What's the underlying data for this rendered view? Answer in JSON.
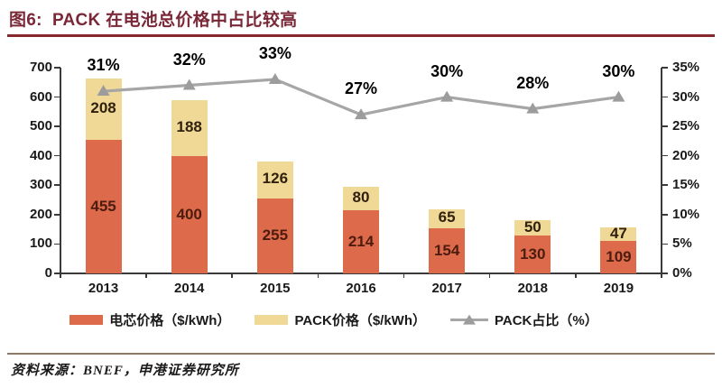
{
  "figure": {
    "title": "图6:  PACK 在电池总价格中占比较高",
    "source": "资料来源：BNEF，申港证券研究所"
  },
  "colors": {
    "title_text": "#7A2837",
    "title_rule": "#86282C",
    "cell_bar": "#DD6A4A",
    "pack_bar": "#F0D996",
    "line": "#A6A6A6",
    "marker": "#9C9C9C",
    "axis": "#3A3A3A",
    "cell_label": "#4C1C0F",
    "pack_label": "#30200E",
    "source_rule": "#8C7A64"
  },
  "chart_data": {
    "type": "bar",
    "stacked": true,
    "grid": false,
    "legend_position": "bottom",
    "title": "",
    "xlabel": "",
    "ylabel": "",
    "categories": [
      "2013",
      "2014",
      "2015",
      "2016",
      "2017",
      "2018",
      "2019"
    ],
    "series": [
      {
        "name": "电芯价格（$/kWh）",
        "axis": "left",
        "values": [
          455,
          400,
          255,
          214,
          154,
          130,
          109
        ]
      },
      {
        "name": "PACK价格（$/kWh）",
        "axis": "left",
        "values": [
          208,
          188,
          126,
          80,
          65,
          50,
          47
        ]
      }
    ],
    "line_series": [
      {
        "name": "PACK占比（%）",
        "axis": "right",
        "values": [
          31,
          32,
          33,
          27,
          30,
          28,
          30
        ],
        "labels": [
          "31%",
          "32%",
          "33%",
          "27%",
          "30%",
          "28%",
          "30%"
        ]
      }
    ],
    "left_axis": {
      "min": 0,
      "max": 700,
      "step": 100,
      "ticks": [
        "0",
        "100",
        "200",
        "300",
        "400",
        "500",
        "600",
        "700"
      ]
    },
    "right_axis": {
      "min": 0,
      "max": 35,
      "step": 5,
      "ticks": [
        "0%",
        "5%",
        "10%",
        "15%",
        "20%",
        "25%",
        "30%",
        "35%"
      ]
    }
  }
}
